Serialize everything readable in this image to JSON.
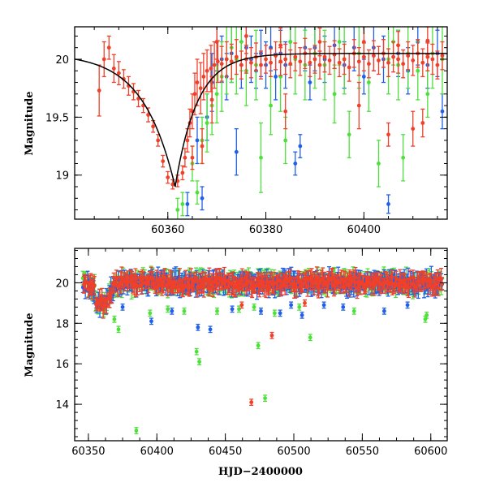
{
  "colors": {
    "red": "#f0402a",
    "green": "#4ee03a",
    "blue": "#2060e8",
    "model": "#000000"
  },
  "chart_data": [
    {
      "type": "scatter",
      "title": "",
      "xlabel": "",
      "ylabel": "Magnitude",
      "xlim": [
        60341,
        60417
      ],
      "ylim": [
        20.28,
        18.62
      ],
      "y_inverted": true,
      "x_ticks": [
        60360,
        60380,
        60400
      ],
      "y_ticks": [
        19,
        19.5,
        20
      ],
      "x_tick_labels": [
        "60360",
        "60380",
        "60400"
      ],
      "y_tick_labels": [
        "19",
        "19.5",
        "20"
      ],
      "model_curve": {
        "peak_x": 60361.5,
        "peak_y": 18.9,
        "base_y": 20.05,
        "rise_tau": 6.5,
        "decay_tau": 4.5
      },
      "series": [
        {
          "color": "red",
          "points": [
            [
              60346,
              19.73,
              0.22
            ],
            [
              60347,
              20.0,
              0.15
            ],
            [
              60348,
              20.1,
              0.1
            ],
            [
              60349,
              19.92,
              0.12
            ],
            [
              60350,
              19.88,
              0.1
            ],
            [
              60351,
              19.83,
              0.08
            ],
            [
              60352,
              19.77,
              0.08
            ],
            [
              60353,
              19.72,
              0.07
            ],
            [
              60354,
              19.66,
              0.07
            ],
            [
              60355,
              19.6,
              0.06
            ],
            [
              60356,
              19.52,
              0.06
            ],
            [
              60357,
              19.42,
              0.05
            ],
            [
              60358,
              19.3,
              0.05
            ],
            [
              60359,
              19.12,
              0.05
            ],
            [
              60360,
              18.98,
              0.05
            ],
            [
              60361,
              18.92,
              0.04
            ],
            [
              60362,
              18.95,
              0.05
            ],
            [
              60363,
              19.02,
              0.06
            ],
            [
              60363.5,
              19.15,
              0.08
            ],
            [
              60364,
              19.3,
              0.1
            ],
            [
              60364.5,
              19.45,
              0.12
            ],
            [
              60365,
              19.55,
              0.15
            ],
            [
              60365.5,
              19.7,
              0.18
            ],
            [
              60366,
              19.8,
              0.2
            ],
            [
              60366.7,
              19.75,
              0.22
            ],
            [
              60367.3,
              19.85,
              0.2
            ],
            [
              60368,
              19.9,
              0.18
            ],
            [
              60368.8,
              19.92,
              0.2
            ],
            [
              60369.5,
              19.95,
              0.2
            ],
            [
              60370.2,
              19.98,
              0.18
            ],
            [
              60371,
              19.96,
              0.15
            ],
            [
              60372,
              20.0,
              0.15
            ],
            [
              60373,
              19.98,
              0.15
            ],
            [
              60374,
              20.02,
              0.15
            ],
            [
              60375,
              19.95,
              0.12
            ],
            [
              60376,
              20.0,
              0.12
            ],
            [
              60377,
              19.97,
              0.13
            ],
            [
              60378,
              20.02,
              0.12
            ],
            [
              60379,
              19.95,
              0.12
            ],
            [
              60380,
              20.0,
              0.12
            ],
            [
              60381,
              19.97,
              0.12
            ],
            [
              60382,
              20.03,
              0.12
            ],
            [
              60383,
              19.98,
              0.12
            ],
            [
              60384,
              20.0,
              0.13
            ],
            [
              60385,
              19.96,
              0.12
            ],
            [
              60386,
              20.02,
              0.12
            ],
            [
              60387,
              19.98,
              0.12
            ],
            [
              60388,
              20.05,
              0.13
            ],
            [
              60389,
              19.97,
              0.12
            ],
            [
              60390,
              20.0,
              0.12
            ],
            [
              60391,
              19.95,
              0.12
            ],
            [
              60392,
              20.02,
              0.13
            ],
            [
              60393,
              19.99,
              0.12
            ],
            [
              60394,
              20.04,
              0.12
            ],
            [
              60395,
              19.97,
              0.12
            ],
            [
              60396,
              20.0,
              0.13
            ],
            [
              60397,
              19.93,
              0.12
            ],
            [
              60398,
              20.05,
              0.12
            ],
            [
              60399,
              19.98,
              0.12
            ],
            [
              60400,
              20.02,
              0.12
            ],
            [
              60401,
              19.96,
              0.12
            ],
            [
              60402,
              20.03,
              0.13
            ],
            [
              60403,
              19.99,
              0.12
            ],
            [
              60404,
              20.05,
              0.12
            ],
            [
              60405,
              19.97,
              0.12
            ],
            [
              60406,
              20.02,
              0.13
            ],
            [
              60407,
              20.0,
              0.12
            ],
            [
              60408,
              19.96,
              0.12
            ],
            [
              60409,
              20.03,
              0.12
            ],
            [
              60410,
              19.99,
              0.13
            ],
            [
              60411,
              20.05,
              0.12
            ],
            [
              60412,
              19.97,
              0.12
            ],
            [
              60413,
              20.02,
              0.12
            ],
            [
              60414,
              20.0,
              0.13
            ],
            [
              60415,
              19.95,
              0.12
            ],
            [
              60416,
              20.03,
              0.12
            ],
            [
              60365,
              19.15,
              0.1
            ],
            [
              60367,
              19.25,
              0.15
            ],
            [
              60369,
              19.65,
              0.2
            ],
            [
              60384,
              19.55,
              0.15
            ],
            [
              60399,
              19.6,
              0.2
            ],
            [
              60405,
              19.35,
              0.1
            ],
            [
              60410,
              19.4,
              0.15
            ],
            [
              60412,
              19.45,
              0.12
            ],
            [
              60370,
              20.15,
              0.15
            ],
            [
              60376,
              20.2,
              0.15
            ],
            [
              60383,
              20.12,
              0.15
            ],
            [
              60391,
              20.15,
              0.12
            ],
            [
              60400,
              20.15,
              0.13
            ],
            [
              60407,
              20.12,
              0.12
            ],
            [
              60413,
              20.16,
              0.12
            ]
          ]
        },
        {
          "color": "green",
          "points": [
            [
              60362,
              18.7,
              0.1
            ],
            [
              60363,
              18.75,
              0.1
            ],
            [
              60365,
              19.1,
              0.15
            ],
            [
              60367,
              19.3,
              0.2
            ],
            [
              60368,
              19.45,
              0.25
            ],
            [
              60369,
              19.6,
              0.25
            ],
            [
              60370,
              19.7,
              0.25
            ],
            [
              60371,
              19.85,
              0.3
            ],
            [
              60372,
              20.0,
              0.3
            ],
            [
              60373,
              20.1,
              0.3
            ],
            [
              60374,
              20.0,
              0.3
            ],
            [
              60376,
              19.9,
              0.3
            ],
            [
              60378,
              19.95,
              0.3
            ],
            [
              60379,
              19.15,
              0.3
            ],
            [
              60381,
              19.6,
              0.25
            ],
            [
              60383,
              19.85,
              0.3
            ],
            [
              60384,
              19.3,
              0.2
            ],
            [
              60386,
              20.0,
              0.3
            ],
            [
              60388,
              19.95,
              0.3
            ],
            [
              60390,
              20.05,
              0.3
            ],
            [
              60392,
              19.95,
              0.3
            ],
            [
              60394,
              19.7,
              0.25
            ],
            [
              60396,
              20.0,
              0.3
            ],
            [
              60397,
              19.35,
              0.2
            ],
            [
              60399,
              20.05,
              0.3
            ],
            [
              60401,
              19.8,
              0.25
            ],
            [
              60403,
              19.1,
              0.2
            ],
            [
              60405,
              20.0,
              0.3
            ],
            [
              60407,
              19.95,
              0.3
            ],
            [
              60408,
              19.15,
              0.2
            ],
            [
              60409,
              20.05,
              0.3
            ],
            [
              60411,
              19.9,
              0.25
            ],
            [
              60413,
              19.7,
              0.2
            ],
            [
              60414,
              20.05,
              0.3
            ],
            [
              60416,
              20.0,
              0.3
            ],
            [
              60366,
              18.85,
              0.1
            ],
            [
              60375,
              20.15,
              0.25
            ],
            [
              60385,
              20.15,
              0.2
            ],
            [
              60395,
              20.15,
              0.2
            ],
            [
              60406,
              20.15,
              0.2
            ]
          ]
        },
        {
          "color": "blue",
          "points": [
            [
              60364,
              18.75,
              0.1
            ],
            [
              60366,
              19.3,
              0.2
            ],
            [
              60367,
              18.8,
              0.1
            ],
            [
              60368,
              19.5,
              0.2
            ],
            [
              60369,
              19.8,
              0.25
            ],
            [
              60370,
              20.15,
              0.25
            ],
            [
              60371,
              20.0,
              0.2
            ],
            [
              60372,
              19.85,
              0.2
            ],
            [
              60373,
              20.05,
              0.25
            ],
            [
              60374,
              19.2,
              0.2
            ],
            [
              60375,
              19.95,
              0.2
            ],
            [
              60376,
              20.1,
              0.2
            ],
            [
              60377,
              20.0,
              0.2
            ],
            [
              60378,
              19.9,
              0.15
            ],
            [
              60379,
              20.05,
              0.2
            ],
            [
              60380,
              19.95,
              0.2
            ],
            [
              60381,
              20.1,
              0.2
            ],
            [
              60382,
              19.85,
              0.2
            ],
            [
              60383,
              20.05,
              0.2
            ],
            [
              60384,
              19.95,
              0.2
            ],
            [
              60385,
              20.15,
              0.2
            ],
            [
              60386,
              19.1,
              0.1
            ],
            [
              60387,
              19.25,
              0.1
            ],
            [
              60388,
              20.1,
              0.2
            ],
            [
              60389,
              19.8,
              0.15
            ],
            [
              60390,
              20.1,
              0.2
            ],
            [
              60392,
              20.0,
              0.2
            ],
            [
              60394,
              20.12,
              0.2
            ],
            [
              60396,
              19.95,
              0.2
            ],
            [
              60398,
              20.1,
              0.2
            ],
            [
              60400,
              19.85,
              0.15
            ],
            [
              60402,
              20.1,
              0.2
            ],
            [
              60404,
              20.0,
              0.2
            ],
            [
              60405,
              18.75,
              0.08
            ],
            [
              60407,
              20.05,
              0.2
            ],
            [
              60409,
              19.9,
              0.2
            ],
            [
              60411,
              20.15,
              0.2
            ],
            [
              60413,
              19.95,
              0.2
            ],
            [
              60415,
              20.05,
              0.2
            ],
            [
              60416,
              19.55,
              0.15
            ]
          ]
        }
      ]
    },
    {
      "type": "scatter",
      "title": "",
      "xlabel": "HJD−2400000",
      "ylabel": "Magnitude",
      "xlim": [
        60340,
        60612
      ],
      "ylim": [
        21.7,
        12.2
      ],
      "y_inverted": true,
      "x_ticks": [
        60350,
        60400,
        60450,
        60500,
        60550,
        60600
      ],
      "y_ticks": [
        14,
        16,
        18,
        20
      ],
      "x_tick_labels": [
        "60350",
        "60400",
        "60450",
        "60500",
        "60550",
        "60600"
      ],
      "y_tick_labels": [
        "14",
        "16",
        "18",
        "20"
      ],
      "outliers": [
        {
          "color": "green",
          "points": [
            [
              60385,
              12.7
            ],
            [
              60369,
              18.2
            ],
            [
              60372,
              17.7
            ],
            [
              60395,
              18.5
            ],
            [
              60408,
              18.7
            ],
            [
              60420,
              18.6
            ],
            [
              60429,
              16.6
            ],
            [
              60431,
              16.1
            ],
            [
              60444,
              18.6
            ],
            [
              60474,
              16.9
            ],
            [
              60479,
              14.3
            ],
            [
              60486,
              18.5
            ],
            [
              60504,
              18.8
            ],
            [
              60512,
              17.3
            ],
            [
              60544,
              18.6
            ],
            [
              60596,
              18.2
            ],
            [
              60597,
              18.4
            ],
            [
              60471,
              18.8
            ],
            [
              60460,
              18.7
            ]
          ]
        },
        {
          "color": "red",
          "points": [
            [
              60469,
              14.1
            ],
            [
              60484,
              17.4
            ],
            [
              60462,
              18.9
            ],
            [
              60508,
              19.0
            ]
          ]
        },
        {
          "color": "blue",
          "points": [
            [
              60375,
              18.8
            ],
            [
              60396,
              18.1
            ],
            [
              60411,
              18.6
            ],
            [
              60430,
              17.8
            ],
            [
              60439,
              17.7
            ],
            [
              60455,
              18.7
            ],
            [
              60476,
              18.6
            ],
            [
              60490,
              18.5
            ],
            [
              60498,
              18.9
            ],
            [
              60506,
              18.4
            ],
            [
              60536,
              18.8
            ],
            [
              60566,
              18.6
            ],
            [
              60583,
              18.9
            ],
            [
              60522,
              18.9
            ]
          ]
        }
      ]
    }
  ]
}
